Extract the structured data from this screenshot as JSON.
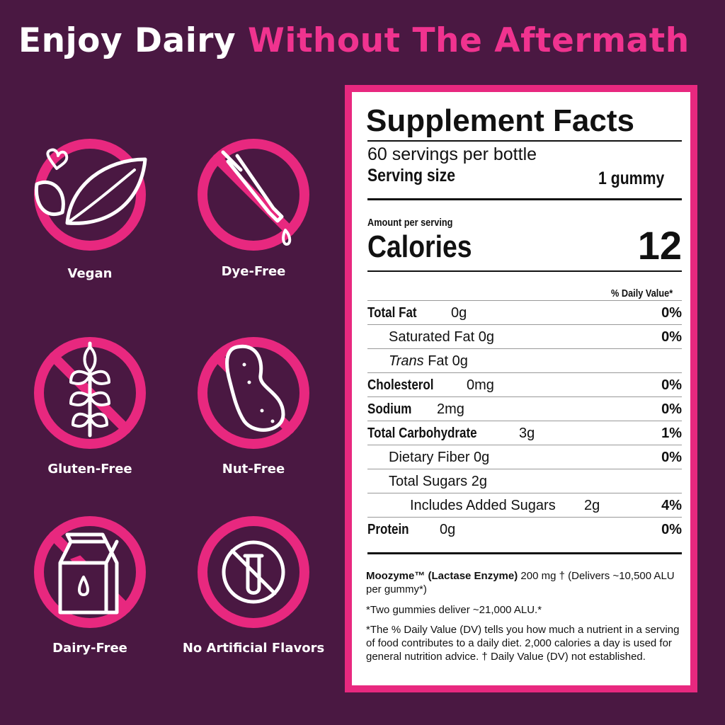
{
  "header": {
    "title_white": "Enjoy Dairy",
    "title_pink": "Without The Aftermath"
  },
  "features": [
    "Vegan",
    "Dye-Free",
    "Gluten-Free",
    "Nut-Free",
    "Dairy-Free",
    "No Artificial Flavors"
  ],
  "facts": {
    "title": "Supplement Facts",
    "servings": "60 servings per bottle",
    "serving_size_label": "Serving size",
    "serving_size": "1 gummy",
    "amount_label": "Amount per serving",
    "calories_label": "Calories",
    "calories": 12,
    "dv_header": "% Daily Value*",
    "rows": [
      {
        "name": "Total Fat",
        "amount": "0g",
        "dv": "0%"
      },
      {
        "name": "Saturated Fat 0g",
        "dv": "0%"
      },
      {
        "italic": "Trans",
        "name": "Fat 0g"
      },
      {
        "name": "Cholesterol",
        "amount": "0mg",
        "dv": "0%"
      },
      {
        "name": "Sodium",
        "amount": "2mg",
        "dv": "0%"
      },
      {
        "name": "Total Carbohydrate",
        "amount": "3g",
        "dv": "1%"
      },
      {
        "name": "Dietary Fiber 0g",
        "dv": "0%"
      },
      {
        "name": "Total Sugars 2g"
      },
      {
        "name": "Includes Added Sugars",
        "amount": "2g",
        "dv": "4%"
      },
      {
        "name": "Protein",
        "amount": "0g",
        "dv": "0%"
      }
    ],
    "enzyme_name": "Moozyme™ (Lactase Enzyme)",
    "enzyme_text": "200 mg † (Delivers ~10,500 ALU per gummy*)",
    "note_1": "*Two gummies deliver ~21,000 ALU.*",
    "note_2": "*The % Daily Value (DV) tells you how much a nutrient in a serving of food contributes to a daily diet. 2,000 calories a day is used for general nutrition advice. † Daily Value (DV) not established."
  }
}
